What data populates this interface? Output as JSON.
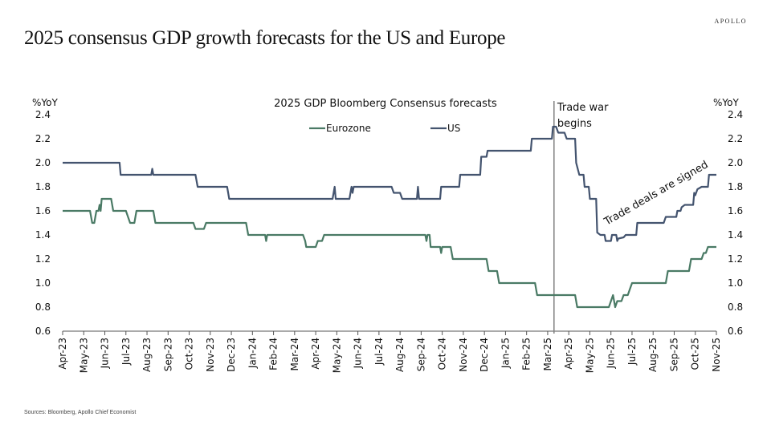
{
  "brand": "APOLLO",
  "title": "2025 consensus GDP growth forecasts for the US and Europe",
  "source": "Sources: Bloomberg, Apollo Chief Economist",
  "chart_data": {
    "type": "line",
    "title": "2025 GDP Bloomberg Consensus forecasts",
    "ylabel_left": "%YoY",
    "ylabel_right": "%YoY",
    "ylim": [
      0.6,
      2.4
    ],
    "yticks": [
      0.6,
      0.8,
      1.0,
      1.2,
      1.4,
      1.6,
      1.8,
      2.0,
      2.2,
      2.4
    ],
    "ytick_labels": [
      "0.6",
      "0.8",
      "1.0",
      "1.2",
      "1.4",
      "1.6",
      "1.8",
      "2.0",
      "2.2",
      "2.4"
    ],
    "x_categories": [
      "Apr-23",
      "May-23",
      "Jun-23",
      "Jul-23",
      "Aug-23",
      "Sep-23",
      "Oct-23",
      "Nov-23",
      "Dec-23",
      "Jan-24",
      "Feb-24",
      "Mar-24",
      "Apr-24",
      "May-24",
      "Jun-24",
      "Jul-24",
      "Aug-24",
      "Sep-24",
      "Oct-24",
      "Nov-24",
      "Dec-24",
      "Jan-25",
      "Feb-25",
      "Mar-25",
      "Apr-25",
      "May-25",
      "Jun-25",
      "Jul-25",
      "Aug-25",
      "Sep-25",
      "Oct-25",
      "Nov-25"
    ],
    "x_unit": "months since Apr-23",
    "legend_position": "top-center",
    "series": [
      {
        "name": "Eurozone",
        "color": "#4a7a65",
        "points": [
          [
            0,
            1.6
          ],
          [
            1.3,
            1.6
          ],
          [
            1.4,
            1.5
          ],
          [
            1.5,
            1.5
          ],
          [
            1.6,
            1.6
          ],
          [
            1.7,
            1.6
          ],
          [
            1.75,
            1.65
          ],
          [
            1.8,
            1.6
          ],
          [
            1.85,
            1.7
          ],
          [
            2.3,
            1.7
          ],
          [
            2.4,
            1.6
          ],
          [
            3.0,
            1.6
          ],
          [
            3.1,
            1.55
          ],
          [
            3.2,
            1.5
          ],
          [
            3.4,
            1.5
          ],
          [
            3.5,
            1.6
          ],
          [
            4.3,
            1.6
          ],
          [
            4.4,
            1.5
          ],
          [
            6.2,
            1.5
          ],
          [
            6.3,
            1.45
          ],
          [
            6.7,
            1.45
          ],
          [
            6.8,
            1.5
          ],
          [
            8.7,
            1.5
          ],
          [
            8.8,
            1.4
          ],
          [
            9.6,
            1.4
          ],
          [
            9.65,
            1.35
          ],
          [
            9.7,
            1.4
          ],
          [
            11.4,
            1.4
          ],
          [
            11.5,
            1.35
          ],
          [
            11.55,
            1.3
          ],
          [
            12.0,
            1.3
          ],
          [
            12.1,
            1.35
          ],
          [
            12.3,
            1.35
          ],
          [
            12.4,
            1.4
          ],
          [
            17.2,
            1.4
          ],
          [
            17.25,
            1.35
          ],
          [
            17.3,
            1.4
          ],
          [
            17.4,
            1.4
          ],
          [
            17.45,
            1.3
          ],
          [
            17.9,
            1.3
          ],
          [
            17.95,
            1.25
          ],
          [
            18.0,
            1.3
          ],
          [
            18.4,
            1.3
          ],
          [
            18.5,
            1.2
          ],
          [
            20.1,
            1.2
          ],
          [
            20.2,
            1.1
          ],
          [
            20.6,
            1.1
          ],
          [
            20.7,
            1.0
          ],
          [
            22.4,
            1.0
          ],
          [
            22.5,
            0.9
          ],
          [
            24.3,
            0.9
          ],
          [
            24.4,
            0.8
          ],
          [
            25.9,
            0.8
          ],
          [
            26.0,
            0.85
          ],
          [
            26.1,
            0.9
          ],
          [
            26.2,
            0.8
          ],
          [
            26.3,
            0.85
          ],
          [
            26.5,
            0.85
          ],
          [
            26.6,
            0.9
          ],
          [
            26.8,
            0.9
          ],
          [
            26.9,
            0.95
          ],
          [
            27.0,
            1.0
          ],
          [
            28.6,
            1.0
          ],
          [
            28.7,
            1.1
          ],
          [
            29.7,
            1.1
          ],
          [
            29.8,
            1.2
          ],
          [
            30.3,
            1.2
          ],
          [
            30.4,
            1.25
          ],
          [
            30.5,
            1.25
          ],
          [
            30.6,
            1.3
          ],
          [
            31,
            1.3
          ]
        ]
      },
      {
        "name": "US",
        "color": "#44546f",
        "points": [
          [
            0,
            2.0
          ],
          [
            2.7,
            2.0
          ],
          [
            2.75,
            1.9
          ],
          [
            4.2,
            1.9
          ],
          [
            4.25,
            1.95
          ],
          [
            4.3,
            1.9
          ],
          [
            6.3,
            1.9
          ],
          [
            6.4,
            1.8
          ],
          [
            7.8,
            1.8
          ],
          [
            7.9,
            1.7
          ],
          [
            12.8,
            1.7
          ],
          [
            12.85,
            1.75
          ],
          [
            12.9,
            1.8
          ],
          [
            12.95,
            1.7
          ],
          [
            13.6,
            1.7
          ],
          [
            13.7,
            1.8
          ],
          [
            13.75,
            1.75
          ],
          [
            13.8,
            1.8
          ],
          [
            15.6,
            1.8
          ],
          [
            15.7,
            1.75
          ],
          [
            16.0,
            1.75
          ],
          [
            16.1,
            1.7
          ],
          [
            16.8,
            1.7
          ],
          [
            16.85,
            1.8
          ],
          [
            16.9,
            1.7
          ],
          [
            17.9,
            1.7
          ],
          [
            17.95,
            1.8
          ],
          [
            18.8,
            1.8
          ],
          [
            18.85,
            1.9
          ],
          [
            19.8,
            1.9
          ],
          [
            19.85,
            2.05
          ],
          [
            20.1,
            2.05
          ],
          [
            20.15,
            2.1
          ],
          [
            22.2,
            2.1
          ],
          [
            22.25,
            2.2
          ],
          [
            23.2,
            2.2
          ],
          [
            23.25,
            2.3
          ],
          [
            23.4,
            2.3
          ],
          [
            23.5,
            2.25
          ],
          [
            23.8,
            2.25
          ],
          [
            23.9,
            2.2
          ],
          [
            24.3,
            2.2
          ],
          [
            24.35,
            2.0
          ],
          [
            24.5,
            1.9
          ],
          [
            24.7,
            1.9
          ],
          [
            24.75,
            1.8
          ],
          [
            24.95,
            1.8
          ],
          [
            25.0,
            1.7
          ],
          [
            25.3,
            1.7
          ],
          [
            25.35,
            1.42
          ],
          [
            25.5,
            1.4
          ],
          [
            25.7,
            1.4
          ],
          [
            25.75,
            1.35
          ],
          [
            26.0,
            1.35
          ],
          [
            26.05,
            1.4
          ],
          [
            26.25,
            1.4
          ],
          [
            26.3,
            1.35
          ],
          [
            26.35,
            1.37
          ],
          [
            26.6,
            1.38
          ],
          [
            26.7,
            1.4
          ],
          [
            27.2,
            1.4
          ],
          [
            27.25,
            1.5
          ],
          [
            28.5,
            1.5
          ],
          [
            28.6,
            1.55
          ],
          [
            29.1,
            1.55
          ],
          [
            29.15,
            1.6
          ],
          [
            29.3,
            1.6
          ],
          [
            29.35,
            1.63
          ],
          [
            29.5,
            1.65
          ],
          [
            29.9,
            1.65
          ],
          [
            29.95,
            1.75
          ],
          [
            30.0,
            1.73
          ],
          [
            30.1,
            1.78
          ],
          [
            30.3,
            1.8
          ],
          [
            30.6,
            1.8
          ],
          [
            30.65,
            1.9
          ],
          [
            31,
            1.9
          ]
        ]
      }
    ],
    "annotations": [
      {
        "type": "vline",
        "x": 23.3,
        "label_lines": [
          "Trade war",
          "begins"
        ],
        "color": "#808080"
      },
      {
        "type": "text",
        "text": "Trade deals are signed",
        "x": 25.8,
        "y": 1.48,
        "rotation": -30
      }
    ]
  }
}
